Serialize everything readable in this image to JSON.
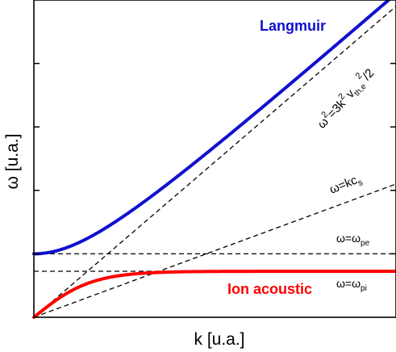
{
  "chart_data": {
    "type": "line",
    "xlabel": "k [u.a.]",
    "ylabel": "ω [u.a.]",
    "xlim": [
      0,
      10
    ],
    "ylim": [
      0,
      10
    ],
    "grid": false,
    "series": [
      {
        "name": "Langmuir",
        "color": "#1010d0",
        "style": "solid-thick",
        "params": {
          "omega_pe": 2.0,
          "slope": 1.0
        }
      },
      {
        "name": "Ion acoustic",
        "color": "#ff0000",
        "style": "solid-thick",
        "params": {
          "omega_pi": 1.45,
          "slope": 0.92
        }
      },
      {
        "label": "ω²=3k²v²th,e/2",
        "style": "dashed",
        "params": {
          "slope": 0.98
        }
      },
      {
        "label": "ω=kcs",
        "style": "dashed",
        "params": {
          "slope": 0.42
        }
      },
      {
        "label": "ω=ωpe",
        "style": "dashed",
        "params": {
          "y": 2.0
        }
      },
      {
        "label": "ω=ωpi",
        "style": "dashed",
        "params": {
          "y": 1.45
        }
      }
    ],
    "annotations": {
      "omega_sq": {
        "omega": "ω",
        "sq1": "2",
        "mid": "=3k",
        "sq2": "2",
        "v": "v",
        "sub": "th,e",
        "sq3": "2",
        "tail": "/2"
      },
      "kcs": {
        "main": "ω=kc",
        "sub": "s"
      },
      "pe": {
        "main": "ω=ω",
        "sub": "pe"
      },
      "pi": {
        "main": "ω=ω",
        "sub": "pi"
      }
    }
  }
}
